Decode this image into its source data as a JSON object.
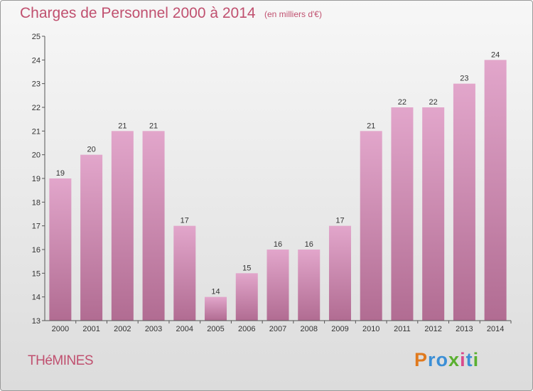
{
  "chart_data": {
    "type": "bar",
    "title": "Charges de Personnel 2000 à 2014",
    "subtitle": "(en milliers d'€)",
    "categories": [
      "2000",
      "2001",
      "2002",
      "2003",
      "2004",
      "2005",
      "2006",
      "2007",
      "2008",
      "2009",
      "2010",
      "2011",
      "2012",
      "2013",
      "2014"
    ],
    "values": [
      19,
      20,
      21,
      21,
      17,
      14,
      15,
      16,
      16,
      17,
      21,
      22,
      22,
      23,
      24
    ],
    "ylim": [
      13,
      25
    ],
    "yticks": [
      13,
      14,
      15,
      16,
      17,
      18,
      19,
      20,
      21,
      22,
      23,
      24,
      25
    ],
    "xlabel": "",
    "ylabel": "",
    "grid": false,
    "bar_color_top": "#e2a6cb",
    "bar_color_bottom": "#b16c92"
  },
  "footer": {
    "commune": "THéMINES",
    "logo": {
      "letters": [
        "P",
        "r",
        "o",
        "x",
        "i",
        "t",
        "i"
      ],
      "colors": [
        "#e07a1e",
        "#3b8fd6",
        "#3b8fd6",
        "#5ab030",
        "#d94a8c",
        "#3b8fd6",
        "#5ab030"
      ]
    }
  },
  "colors": {
    "title": "#c0506f",
    "axis": "#555555"
  }
}
